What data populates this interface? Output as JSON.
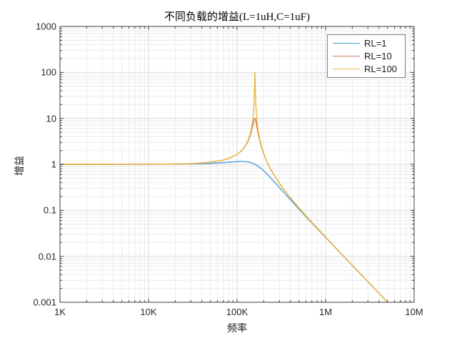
{
  "chart_data": {
    "type": "line",
    "title": "不同负载的增益(L=1uH,C=1uF)",
    "xlabel": "频率",
    "ylabel": "增益",
    "x_scale": "log",
    "y_scale": "log",
    "xlim": [
      1000,
      10000000
    ],
    "ylim": [
      0.001,
      1000
    ],
    "x_tick_values": [
      1000,
      10000,
      100000,
      1000000,
      10000000
    ],
    "x_tick_labels": [
      "1K",
      "10K",
      "100K",
      "1M",
      "10M"
    ],
    "y_tick_values": [
      1000,
      100,
      10,
      1,
      0.1,
      0.01,
      0.001
    ],
    "y_tick_labels": [
      "1000",
      "100",
      "10",
      "1",
      "0.1",
      "0.01",
      "0.001"
    ],
    "grid": "major+minor",
    "legend_position": "top-right-inside",
    "style": {
      "axis_color": "#3c3c3c",
      "major_grid_color": "#d9d9d9",
      "minor_grid_color": "#ebebeb",
      "background": "#ffffff"
    },
    "frequencies_hz": [
      1000,
      1500,
      2200,
      3300,
      4700,
      6800,
      10000,
      15000,
      22000,
      33000,
      47000,
      68000,
      82000,
      100000,
      110000,
      120000,
      130000,
      140000,
      145000,
      150000,
      153000,
      155000,
      157000,
      158000,
      159155,
      160300,
      161000,
      163000,
      165000,
      168000,
      172000,
      177000,
      183000,
      190000,
      200000,
      215000,
      235000,
      260000,
      300000,
      360000,
      430000,
      520000,
      620000,
      750000,
      900000,
      1100000,
      1300000,
      1600000,
      2000000,
      2500000,
      3100000,
      3900000,
      5000000
    ],
    "series": [
      {
        "name": "RL=1",
        "color": "#4D9FD6",
        "gains": [
          1.0,
          1.0,
          1.0001,
          1.0002,
          1.0004,
          1.0009,
          1.002,
          1.0044,
          1.0095,
          1.0212,
          1.0428,
          1.0842,
          1.1146,
          1.1463,
          1.1543,
          1.1511,
          1.1337,
          1.101,
          1.079,
          1.0536,
          1.037,
          1.0254,
          1.0134,
          1.0072,
          1.0,
          0.9927,
          0.9883,
          0.9753,
          0.9621,
          0.9418,
          0.9143,
          0.8795,
          0.8375,
          0.7891,
          0.7227,
          0.6318,
          0.529,
          0.4282,
          0.3151,
          0.2129,
          0.1459,
          0.0979,
          0.068,
          0.046,
          0.0318,
          0.0212,
          0.0151,
          0.00994,
          0.006353,
          0.004061,
          0.002639,
          0.001661,
          0.001014
        ]
      },
      {
        "name": "RL=10",
        "color": "#CF7A5A",
        "gains": [
          1.0,
          1.0,
          1.0002,
          1.0004,
          1.0009,
          1.0018,
          1.0039,
          1.0089,
          1.0194,
          1.0447,
          1.0961,
          1.2216,
          1.3581,
          1.6435,
          1.8981,
          2.2828,
          2.918,
          4.12,
          5.1857,
          6.8412,
          8.1663,
          9.0759,
          9.7805,
          9.9679,
          10.0,
          9.8283,
          9.6327,
          8.8118,
          7.8225,
          6.4294,
          5.0075,
          3.8222,
          2.924,
          2.2644,
          1.6875,
          1.1963,
          0.8408,
          0.5964,
          0.3906,
          0.2426,
          0.1586,
          0.1033,
          0.0705,
          0.0471,
          0.0323,
          0.0214,
          0.0152,
          0.00999,
          0.006373,
          0.004069,
          0.002643,
          0.001662,
          0.001014
        ]
      },
      {
        "name": "RL=100",
        "color": "#EBB63C",
        "gains": [
          1.0,
          1.0,
          1.0002,
          1.0004,
          1.0009,
          1.0018,
          1.004,
          1.0089,
          1.0195,
          1.0449,
          1.0967,
          1.2233,
          1.3614,
          1.6522,
          1.9144,
          2.317,
          3.0038,
          4.417,
          5.8751,
          8.9181,
          13.08,
          19.069,
          34.909,
          57.023,
          100.0,
          56.8,
          39.34,
          20.015,
          13.242,
          8.7171,
          5.9429,
          4.218,
          3.1027,
          2.351,
          1.7263,
          1.2121,
          0.8473,
          0.5992,
          0.3917,
          0.2429,
          0.1587,
          0.1034,
          0.0705,
          0.0472,
          0.0323,
          0.0214,
          0.0152,
          0.00999,
          0.006373,
          0.004069,
          0.002643,
          0.001663,
          0.001014
        ]
      }
    ]
  }
}
